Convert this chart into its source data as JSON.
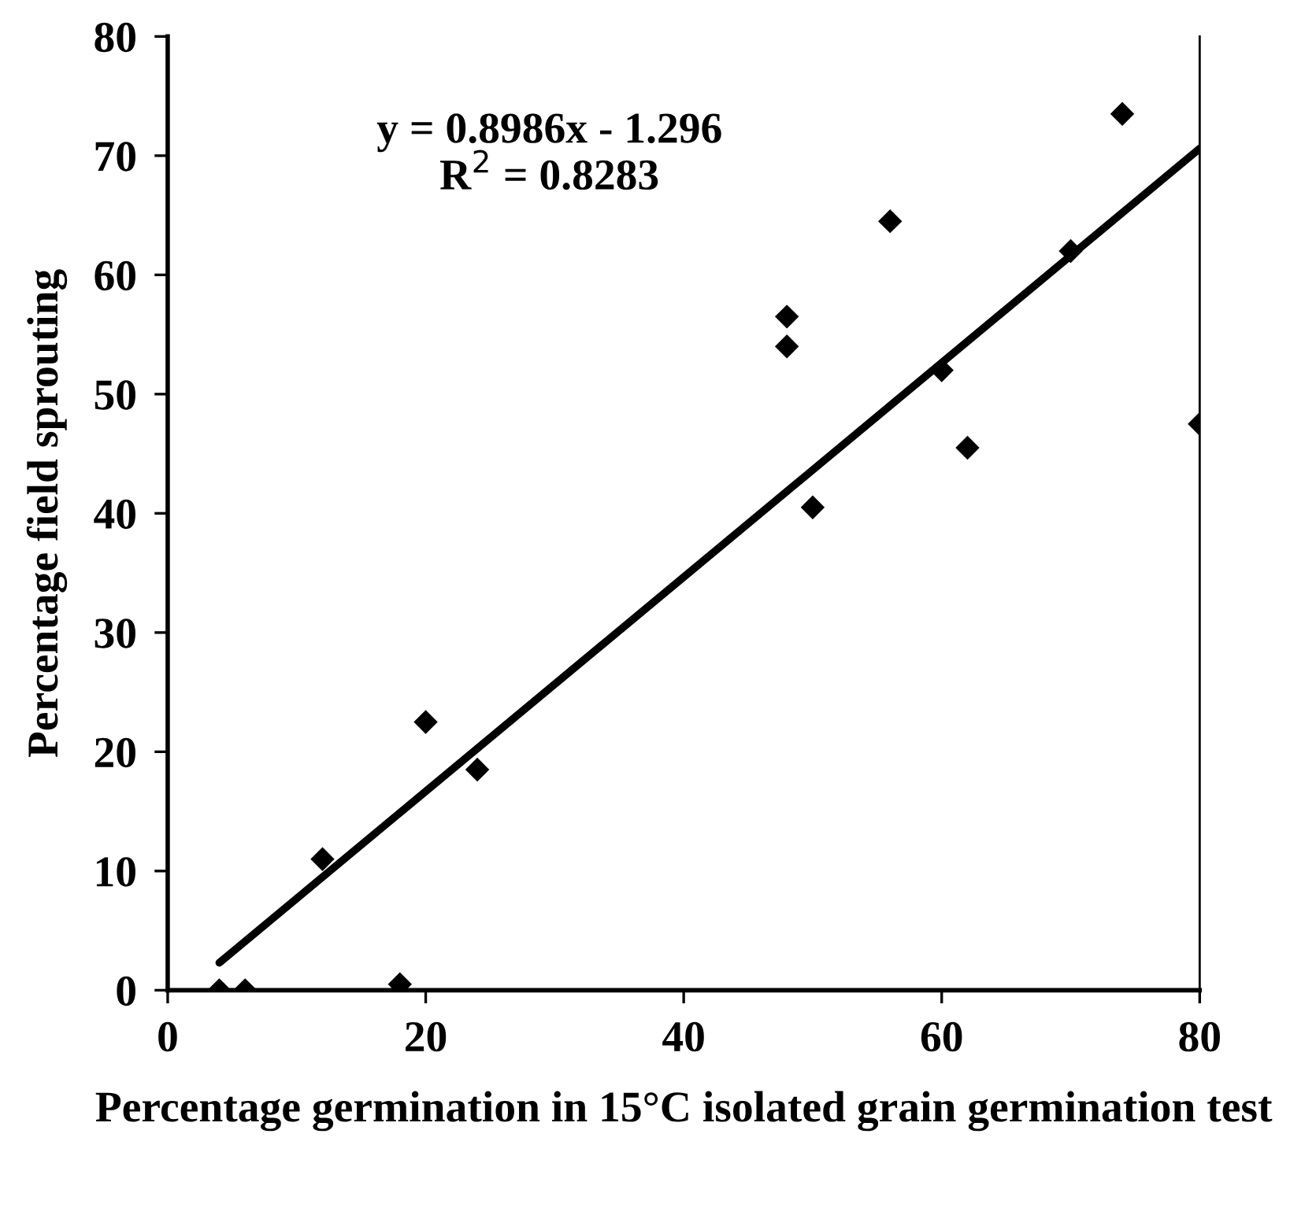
{
  "chart_data": {
    "type": "scatter",
    "xlabel": "Percentage germination in 15°C isolated grain germination test",
    "ylabel": "Percentage field sprouting",
    "x": [
      4,
      6,
      12,
      18,
      20,
      24,
      48,
      48,
      50,
      56,
      60,
      62,
      70,
      74,
      80
    ],
    "series": [
      {
        "color": "#000000",
        "marker": "diamond",
        "values": [
          0,
          0,
          11,
          0.5,
          22.5,
          18.5,
          56.5,
          54,
          40.5,
          64.5,
          52,
          45.5,
          62,
          73.5,
          47.5
        ]
      },
      {
        "type": "line",
        "color": "#000000",
        "marker": "none",
        "line_style": "solid",
        "x": [
          4,
          80
        ],
        "values": [
          2.3,
          70.6
        ]
      }
    ],
    "annotations": [
      "y = 0.8986x - 1.296\nR$^{2}$ = 0.8283"
    ],
    "xlim": [
      0,
      80
    ],
    "ylim": [
      0,
      80
    ],
    "xticks": [
      0,
      20,
      40,
      60,
      80
    ],
    "yticks": [
      0,
      10,
      20,
      30,
      40,
      50,
      60,
      70,
      80
    ],
    "grid": false,
    "legend": false
  }
}
